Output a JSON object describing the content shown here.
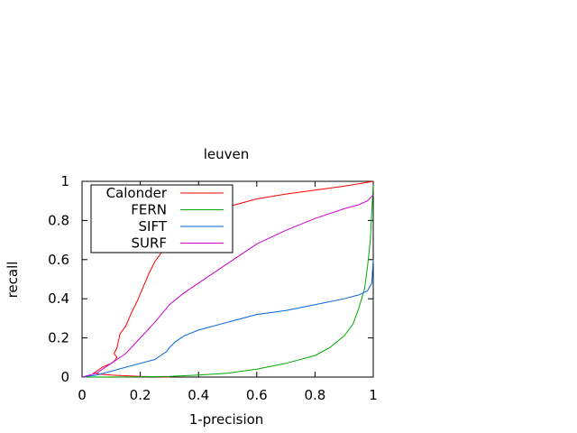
{
  "chart_data": {
    "type": "line",
    "title": "leuven",
    "xlabel": "1-precision",
    "ylabel": "recall",
    "xlim": [
      0,
      1
    ],
    "ylim": [
      0,
      1
    ],
    "xticks": [
      0,
      0.2,
      0.4,
      0.6,
      0.8,
      1
    ],
    "yticks": [
      0,
      0.2,
      0.4,
      0.6,
      0.8,
      1
    ],
    "xtick_labels": [
      "0",
      "0.2",
      "0.4",
      "0.6",
      "0.8",
      "1"
    ],
    "ytick_labels": [
      "0",
      "0.2",
      "0.4",
      "0.6",
      "0.8",
      "1"
    ],
    "grid": false,
    "legend_position": "top-left",
    "series": [
      {
        "name": "Calonder",
        "color": "#ff0000",
        "x": [
          0.3,
          0.2,
          0.1,
          0.06,
          0.04,
          0.07,
          0.1,
          0.11,
          0.12,
          0.11,
          0.12,
          0.13,
          0.15,
          0.17,
          0.19,
          0.21,
          0.23,
          0.25,
          0.28,
          0.31,
          0.35,
          0.4,
          0.45,
          0.5,
          0.6,
          0.7,
          0.8,
          0.9,
          0.96,
          1.0
        ],
        "y": [
          0.0,
          0.003,
          0.01,
          0.015,
          0.02,
          0.05,
          0.07,
          0.08,
          0.1,
          0.12,
          0.15,
          0.22,
          0.26,
          0.33,
          0.39,
          0.46,
          0.53,
          0.59,
          0.65,
          0.7,
          0.76,
          0.8,
          0.84,
          0.87,
          0.91,
          0.935,
          0.955,
          0.975,
          0.99,
          1.0
        ]
      },
      {
        "name": "FERN",
        "color": "#00aa00",
        "x": [
          0.0,
          0.2,
          0.3,
          0.4,
          0.5,
          0.6,
          0.7,
          0.8,
          0.85,
          0.9,
          0.93,
          0.95,
          0.97,
          0.98,
          0.99,
          0.995,
          1.0
        ],
        "y": [
          0.0,
          0.001,
          0.003,
          0.01,
          0.02,
          0.04,
          0.07,
          0.11,
          0.15,
          0.21,
          0.27,
          0.35,
          0.45,
          0.56,
          0.7,
          0.85,
          0.98
        ]
      },
      {
        "name": "SIFT",
        "color": "#0066dd",
        "x": [
          0.0,
          0.05,
          0.1,
          0.15,
          0.2,
          0.25,
          0.27,
          0.29,
          0.3,
          0.32,
          0.35,
          0.4,
          0.5,
          0.6,
          0.7,
          0.8,
          0.9,
          0.95,
          0.98,
          0.995,
          1.0
        ],
        "y": [
          0.0,
          0.01,
          0.03,
          0.05,
          0.07,
          0.09,
          0.11,
          0.13,
          0.15,
          0.18,
          0.21,
          0.24,
          0.28,
          0.32,
          0.34,
          0.37,
          0.4,
          0.42,
          0.44,
          0.48,
          0.6
        ]
      },
      {
        "name": "SURF",
        "color": "#cc00cc",
        "x": [
          0.0,
          0.05,
          0.1,
          0.15,
          0.2,
          0.25,
          0.3,
          0.35,
          0.4,
          0.5,
          0.6,
          0.7,
          0.8,
          0.9,
          0.95,
          0.98,
          1.0
        ],
        "y": [
          0.0,
          0.02,
          0.07,
          0.12,
          0.2,
          0.28,
          0.37,
          0.43,
          0.48,
          0.58,
          0.68,
          0.75,
          0.81,
          0.86,
          0.88,
          0.9,
          0.93
        ]
      }
    ]
  }
}
